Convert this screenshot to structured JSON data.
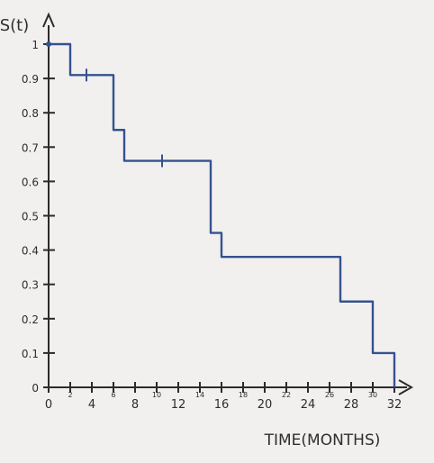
{
  "chart_data": {
    "type": "line",
    "step": true,
    "title": "",
    "ylabel": "S(t)",
    "xlabel": "TIME(MONTHS)",
    "xlim": [
      0,
      32
    ],
    "ylim": [
      0,
      1
    ],
    "x_tick_labels": [
      "0",
      "2",
      "4",
      "6",
      "8",
      "10",
      "12",
      "14",
      "16",
      "18",
      "20",
      "22",
      "24",
      "26",
      "28",
      "30",
      "32"
    ],
    "y_tick_labels": [
      "0",
      "0.1",
      "0.2",
      "0.3",
      "0.4",
      "0.5",
      "0.6",
      "0.7",
      "0.8",
      "0.9",
      "1"
    ],
    "grid": false,
    "series": [
      {
        "x": [
          0,
          2,
          6,
          7,
          15,
          16,
          27,
          30,
          32
        ],
        "y": [
          1.0,
          0.91,
          0.75,
          0.66,
          0.45,
          0.38,
          0.25,
          0.1,
          0.0
        ],
        "censored_x": [
          3.5,
          10.5
        ],
        "censored_y": [
          0.91,
          0.66
        ]
      }
    ],
    "colors": {
      "curve": "#35528f",
      "axes": "#2b2b2b"
    }
  }
}
